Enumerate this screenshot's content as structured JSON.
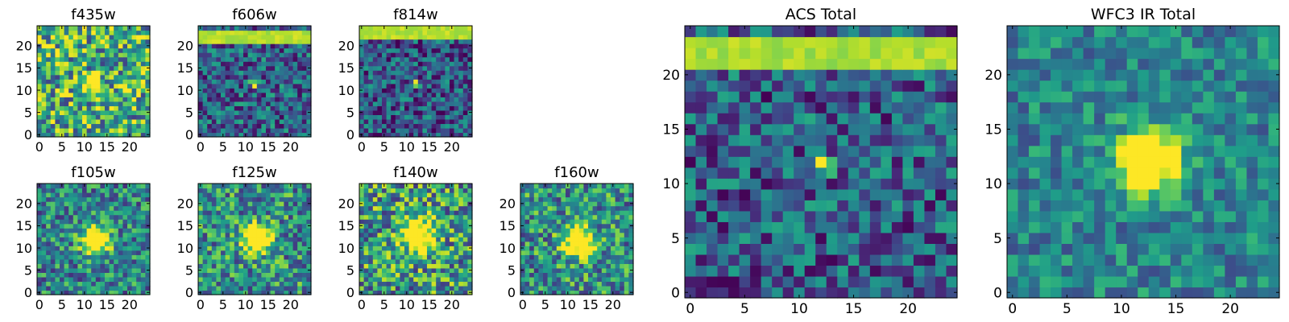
{
  "colormap": [
    "#440154",
    "#482878",
    "#3e4989",
    "#31688e",
    "#26828e",
    "#1f9e89",
    "#35b779",
    "#6ece58",
    "#b5de2b",
    "#fde725"
  ],
  "chart_data": [
    {
      "type": "heatmap",
      "title": "f435w",
      "xlim": [
        -0.5,
        24.5
      ],
      "ylim": [
        -0.5,
        24.5
      ],
      "xticks": [
        0,
        5,
        10,
        15,
        20
      ],
      "yticks": [
        0,
        5,
        10,
        15,
        20
      ],
      "source": {
        "center": [
          12,
          11.5
        ],
        "sigma": 1.2,
        "peak": 0.95
      },
      "stripe": null,
      "noise": {
        "base": 0.62,
        "amp": 0.42
      },
      "seed": 11
    },
    {
      "type": "heatmap",
      "title": "f606w",
      "xlim": [
        -0.5,
        24.5
      ],
      "ylim": [
        -0.5,
        24.5
      ],
      "xticks": [
        0,
        5,
        10,
        15,
        20
      ],
      "yticks": [
        0,
        5,
        10,
        15,
        20
      ],
      "source": {
        "center": [
          12,
          11.5
        ],
        "sigma": 0.6,
        "peak": 0.85
      },
      "stripe": {
        "rows": [
          21,
          22,
          23
        ],
        "level": 0.95
      },
      "noise": {
        "base": 0.32,
        "amp": 0.3
      },
      "seed": 23
    },
    {
      "type": "heatmap",
      "title": "f814w",
      "xlim": [
        -0.5,
        24.5
      ],
      "ylim": [
        -0.5,
        24.5
      ],
      "xticks": [
        0,
        5,
        10,
        15,
        20
      ],
      "yticks": [
        0,
        5,
        10,
        15,
        20
      ],
      "source": {
        "center": [
          12,
          11.5
        ],
        "sigma": 0.5,
        "peak": 0.7
      },
      "stripe": {
        "rows": [
          22,
          23,
          24
        ],
        "level": 0.95
      },
      "noise": {
        "base": 0.28,
        "amp": 0.3
      },
      "seed": 37
    },
    {
      "type": "heatmap",
      "title": "f105w",
      "xlim": [
        -0.5,
        24.5
      ],
      "ylim": [
        -0.5,
        24.5
      ],
      "xticks": [
        0,
        5,
        10,
        15,
        20
      ],
      "yticks": [
        0,
        5,
        10,
        15,
        20
      ],
      "source": {
        "center": [
          12.5,
          12
        ],
        "sigma": 2.2,
        "peak": 1.0
      },
      "stripe": null,
      "noise": {
        "base": 0.45,
        "amp": 0.32
      },
      "seed": 41
    },
    {
      "type": "heatmap",
      "title": "f125w",
      "xlim": [
        -0.5,
        24.5
      ],
      "ylim": [
        -0.5,
        24.5
      ],
      "xticks": [
        0,
        5,
        10,
        15,
        20
      ],
      "yticks": [
        0,
        5,
        10,
        15,
        20
      ],
      "source": {
        "center": [
          12.5,
          12
        ],
        "sigma": 2.2,
        "peak": 0.95
      },
      "stripe": null,
      "noise": {
        "base": 0.5,
        "amp": 0.35
      },
      "seed": 53
    },
    {
      "type": "heatmap",
      "title": "f140w",
      "xlim": [
        -0.5,
        24.5
      ],
      "ylim": [
        -0.5,
        24.5
      ],
      "xticks": [
        0,
        5,
        10,
        15,
        20
      ],
      "yticks": [
        0,
        5,
        10,
        15,
        20
      ],
      "source": {
        "center": [
          12.5,
          13
        ],
        "sigma": 2.6,
        "peak": 0.9
      },
      "stripe": null,
      "noise": {
        "base": 0.55,
        "amp": 0.4
      },
      "seed": 67
    },
    {
      "type": "heatmap",
      "title": "f160w",
      "xlim": [
        -0.5,
        24.5
      ],
      "ylim": [
        -0.5,
        24.5
      ],
      "xticks": [
        0,
        5,
        10,
        15,
        20
      ],
      "yticks": [
        0,
        5,
        10,
        15,
        20
      ],
      "source": {
        "center": [
          12.5,
          11.5
        ],
        "sigma": 2.4,
        "peak": 0.95
      },
      "stripe": null,
      "noise": {
        "base": 0.5,
        "amp": 0.35
      },
      "seed": 79
    },
    {
      "type": "heatmap",
      "title": "ACS Total",
      "xlim": [
        -0.5,
        24.5
      ],
      "ylim": [
        -0.5,
        24.5
      ],
      "xticks": [
        0,
        5,
        10,
        15,
        20
      ],
      "yticks": [
        0,
        5,
        10,
        15,
        20
      ],
      "source": {
        "center": [
          12.3,
          11.6
        ],
        "sigma": 0.55,
        "peak": 0.85
      },
      "stripe": {
        "rows": [
          21,
          22,
          23
        ],
        "level": 0.93
      },
      "noise": {
        "base": 0.3,
        "amp": 0.3
      },
      "seed": 97
    },
    {
      "type": "heatmap",
      "title": "WFC3 IR Total",
      "xlim": [
        -0.5,
        24.5
      ],
      "ylim": [
        -0.5,
        24.5
      ],
      "xticks": [
        0,
        5,
        10,
        15,
        20
      ],
      "yticks": [
        0,
        5,
        10,
        15,
        20
      ],
      "source": {
        "center": [
          12.5,
          12
        ],
        "sigma": 2.0,
        "peak": 1.0
      },
      "stripe": null,
      "noise": {
        "base": 0.45,
        "amp": 0.22
      },
      "seed": 113
    }
  ]
}
